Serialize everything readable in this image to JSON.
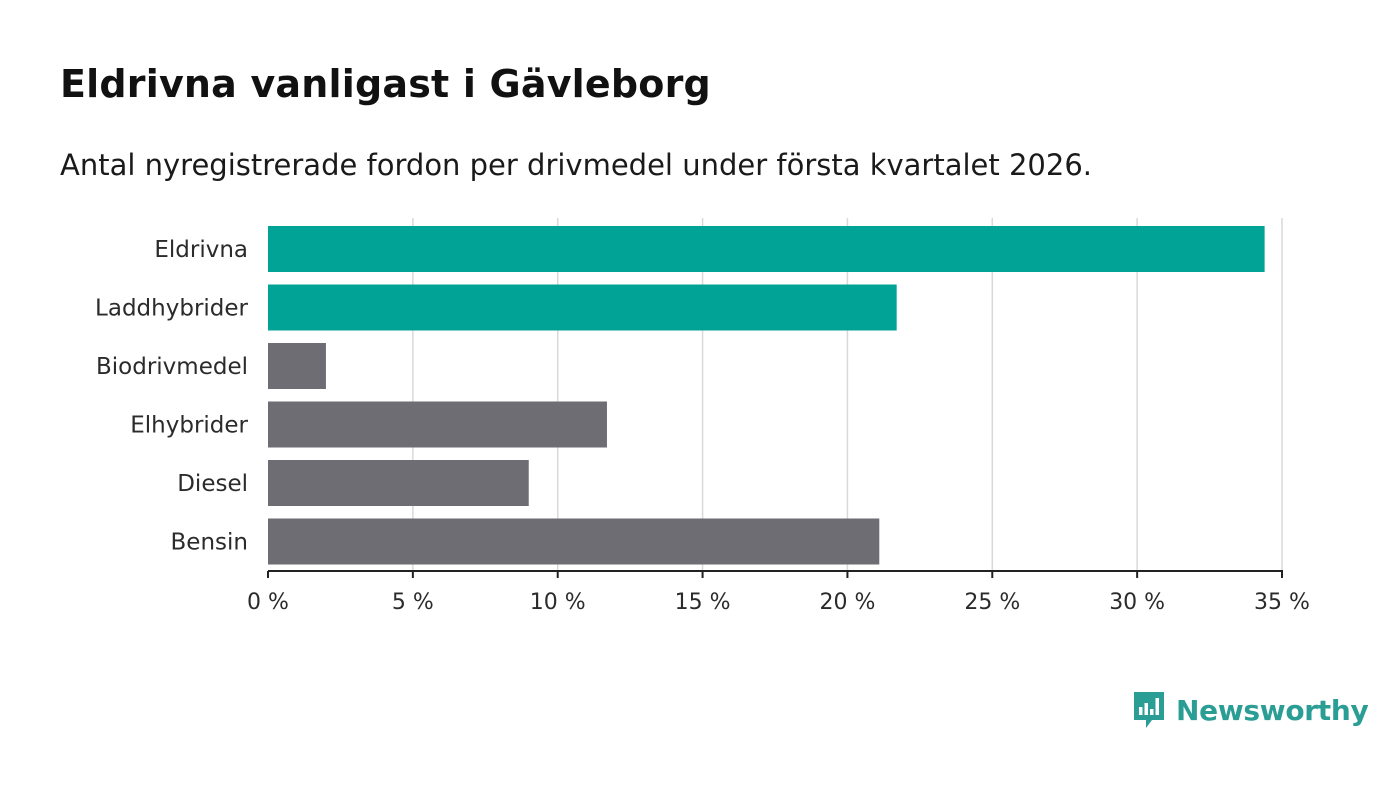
{
  "header": {
    "title": "Eldrivna vanligast i Gävleborg",
    "subtitle": "Antal nyregistrerade fordon per drivmedel under första kvartalet 2026."
  },
  "brand": {
    "name": "Newsworthy",
    "icon": "bar-chart-speech-bubble-icon",
    "color": "#2a9d94"
  },
  "colors": {
    "highlight": "#00a396",
    "default": "#6e6d74",
    "grid": "#d9d9d9",
    "axis": "#222222"
  },
  "chart_data": {
    "type": "bar",
    "orientation": "horizontal",
    "categories": [
      "Eldrivna",
      "Laddhybrider",
      "Biodrivmedel",
      "Elhybrider",
      "Diesel",
      "Bensin"
    ],
    "values": [
      34.4,
      21.7,
      2.0,
      11.7,
      9.0,
      21.1
    ],
    "highlighted": [
      true,
      true,
      false,
      false,
      false,
      false
    ],
    "xlim": [
      0,
      35
    ],
    "xticks": [
      0,
      5,
      10,
      15,
      20,
      25,
      30,
      35
    ],
    "xtick_labels": [
      "0 %",
      "5 %",
      "10 %",
      "15 %",
      "20 %",
      "25 %",
      "30 %",
      "35 %"
    ],
    "grid": true
  }
}
